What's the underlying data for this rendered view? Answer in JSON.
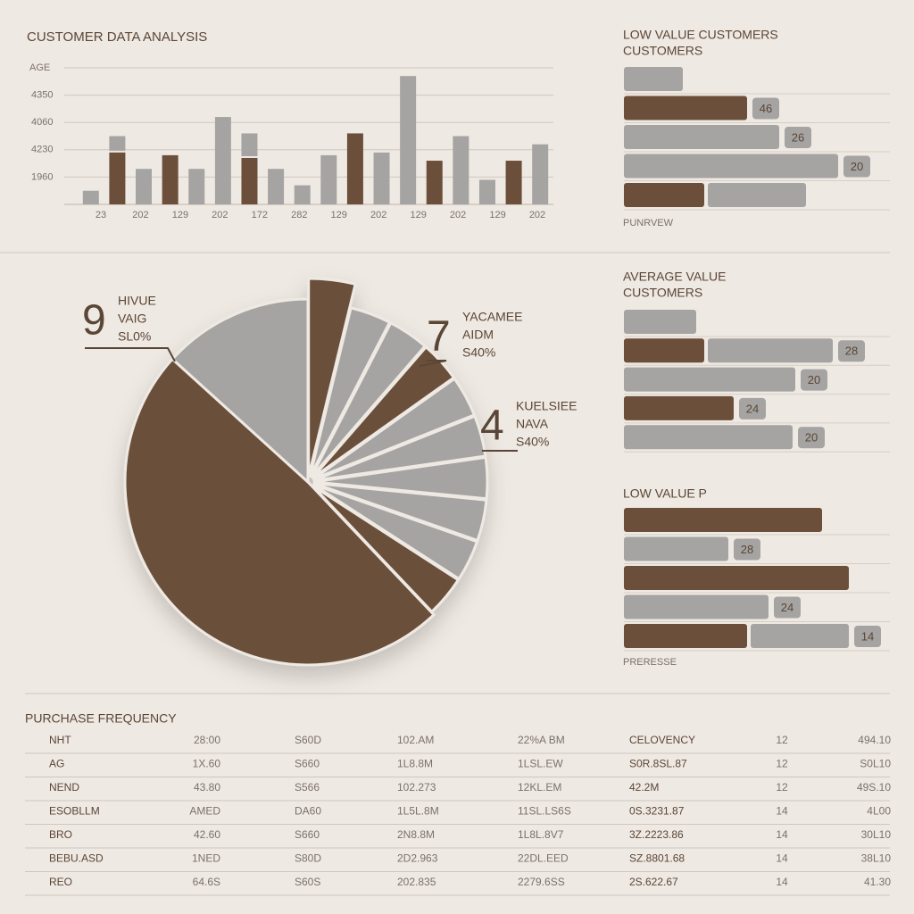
{
  "chart_data": [
    {
      "type": "bar",
      "title": "CUSTOMER DATA ANALYSIS",
      "ylabel": "AGE",
      "categories": [
        null,
        null,
        null,
        null,
        null,
        null,
        null,
        null,
        null,
        null,
        null,
        null,
        null,
        null,
        null,
        null,
        null,
        null
      ],
      "x_labels": [
        "23",
        "202",
        "129",
        "202",
        "172",
        "282",
        "129",
        "202",
        "129",
        "202",
        "129",
        "202"
      ],
      "series": [
        {
          "color": "#6b4f3a",
          "values": [
            0,
            1.9,
            0,
            1.8,
            0,
            0,
            1.7,
            0,
            0,
            0,
            2.6,
            0,
            0,
            1.6,
            0,
            0,
            1.6,
            0
          ]
        },
        {
          "color": "#a5a4a2",
          "values": [
            0.5,
            0.6,
            1.3,
            0,
            1.3,
            3.2,
            0.9,
            1.3,
            0.7,
            1.8,
            0,
            1.9,
            4.7,
            0,
            2.5,
            0.9,
            0,
            2.2
          ]
        }
      ],
      "ylim": [
        0,
        5
      ],
      "yticks": [
        {
          "value": 1,
          "label": "1960"
        },
        {
          "value": 2,
          "label": "4230"
        },
        {
          "value": 3,
          "label": "4060"
        },
        {
          "value": 4,
          "label": "4350"
        }
      ],
      "grid": true
    },
    {
      "type": "hbar",
      "title": "LOW VALUE CUSTOMERS",
      "subtitle": "CUSTOMERS",
      "footer": "PUNRVEW",
      "xlim": [
        0,
        100
      ],
      "series": [
        {
          "color": "#6b4f3a",
          "values": [
            0,
            46,
            0,
            0,
            30
          ]
        },
        {
          "color": "#a5a4a2",
          "values": [
            22,
            0,
            58,
            80,
            38
          ]
        }
      ],
      "value_labels": [
        null,
        "46",
        "26",
        "20",
        null
      ]
    },
    {
      "type": "hbar",
      "title": "AVERAGE VALUE",
      "subtitle": "CUSTOMERS",
      "xlim": [
        0,
        100
      ],
      "series": [
        {
          "color": "#6b4f3a",
          "values": [
            0,
            30,
            0,
            41,
            0
          ]
        },
        {
          "color": "#a5a4a2",
          "values": [
            27,
            48,
            64,
            0,
            63
          ]
        }
      ],
      "value_labels": [
        null,
        "28",
        "20",
        "24",
        "20"
      ]
    },
    {
      "type": "hbar",
      "title": "LOW VALUE P",
      "footer": "PRERESSE",
      "xlim": [
        0,
        100
      ],
      "series": [
        {
          "color": "#6b4f3a",
          "values": [
            74,
            0,
            84,
            0,
            46
          ]
        },
        {
          "color": "#a5a4a2",
          "values": [
            0,
            39,
            0,
            54,
            38
          ]
        }
      ],
      "value_labels": [
        null,
        "28",
        null,
        "24",
        "14"
      ]
    },
    {
      "type": "pie",
      "values": [
        3.8,
        3.8,
        3.8,
        3.8,
        3.8,
        3.8,
        3.8,
        3.8,
        3.8,
        3.8,
        48.9,
        13.3
      ],
      "colors": [
        "#6b4f3a",
        "#a5a4a2",
        "#a5a4a2",
        "#6b4f3a",
        "#a5a4a2",
        "#a5a4a2",
        "#a5a4a2",
        "#a5a4a2",
        "#a5a4a2",
        "#6b4f3a",
        "#6b4f3a",
        "#a5a4a2"
      ],
      "annotations": [
        {
          "text": "9",
          "lines": [
            "HIVUE",
            "VAIG",
            "SL0%"
          ]
        },
        {
          "text": "7",
          "lines": [
            "YACAMEE",
            "AIDM",
            "S40%"
          ]
        },
        {
          "text": "4",
          "lines": [
            "KUELSIEE",
            "NAVA",
            "S40%"
          ]
        }
      ]
    }
  ],
  "table": {
    "title": "PURCHASE FREQUENCY",
    "rows": [
      [
        "NHT",
        "28:00",
        "S60D",
        "102.AM",
        "22%A BM",
        "CELOVENCY",
        "12",
        "494.10"
      ],
      [
        "AG",
        "1X.60",
        "S660",
        "1L8.8M",
        "1LSL.EW",
        "S0R.8SL.87",
        "12",
        "S0L10"
      ],
      [
        "NEND",
        "43.80",
        "S566",
        "102.273",
        "12KL.EM",
        "42.2M",
        "12",
        "49S.10"
      ],
      [
        "ESOBLLM",
        "AMED",
        "DA60",
        "1L5L.8M",
        "11SL.LS6S",
        "0S.3231.87",
        "14",
        "4L00"
      ],
      [
        "BRO",
        "42.60",
        "S660",
        "2N8.8M",
        "1L8L.8V7",
        "3Z.2223.86",
        "14",
        "30L10"
      ],
      [
        "BEBU.ASD",
        "1NED",
        "S80D",
        "2D2.963",
        "22DL.EED",
        "SZ.8801.68",
        "14",
        "38L10"
      ],
      [
        "REO",
        "64.6S",
        "S60S",
        "202.835",
        "2279.6SS",
        "2S.622.67",
        "14",
        "41.30"
      ]
    ]
  }
}
